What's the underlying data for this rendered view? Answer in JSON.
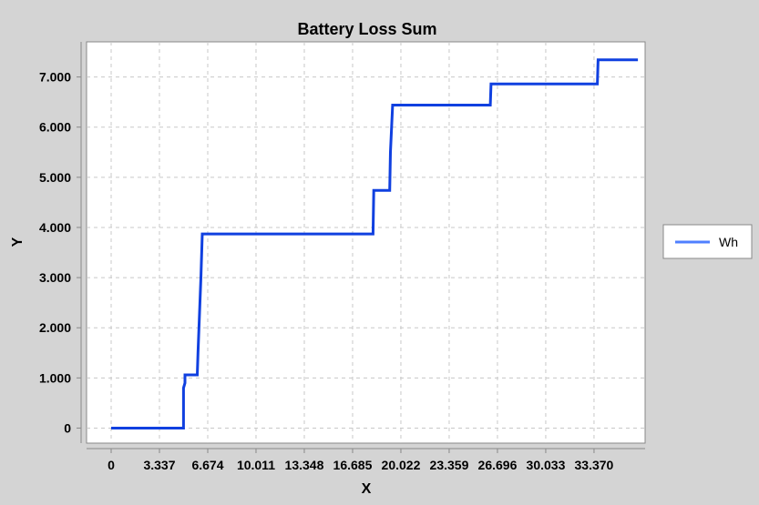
{
  "chart_data": {
    "type": "line",
    "title": "Battery Loss Sum",
    "xlabel": "X",
    "ylabel": "Y",
    "xlim": [
      -1.7,
      36.9
    ],
    "ylim": [
      -300,
      7700
    ],
    "grid": true,
    "legend_placement": "right",
    "x_ticks": [
      0,
      3.337,
      6.674,
      10.011,
      13.348,
      16.685,
      20.022,
      23.359,
      26.696,
      30.033,
      33.37
    ],
    "x_tick_labels": [
      "0",
      "3.337",
      "6.674",
      "10.011",
      "13.348",
      "16.685",
      "20.022",
      "23.359",
      "26.696",
      "30.033",
      "33.370"
    ],
    "y_ticks": [
      0,
      1000,
      2000,
      3000,
      4000,
      5000,
      6000,
      7000
    ],
    "y_tick_labels": [
      "0",
      "1.000",
      "2.000",
      "3.000",
      "4.000",
      "5.000",
      "6.000",
      "7.000"
    ],
    "series": [
      {
        "name": "Wh",
        "color": "#1040e0",
        "x": [
          0,
          5.0,
          5.0,
          5.1,
          5.1,
          5.95,
          6.0,
          6.2,
          6.3,
          18.1,
          18.15,
          19.25,
          19.3,
          19.45,
          26.2,
          26.25,
          33.6,
          33.65,
          36.4
        ],
        "y": [
          0,
          0,
          800,
          900,
          1060,
          1060,
          1500,
          3000,
          3870,
          3870,
          4740,
          4740,
          5500,
          6440,
          6440,
          6860,
          6860,
          7340,
          7340
        ]
      }
    ]
  },
  "legend": {
    "items": [
      {
        "label": "Wh",
        "color": "#4f7fff"
      }
    ]
  }
}
